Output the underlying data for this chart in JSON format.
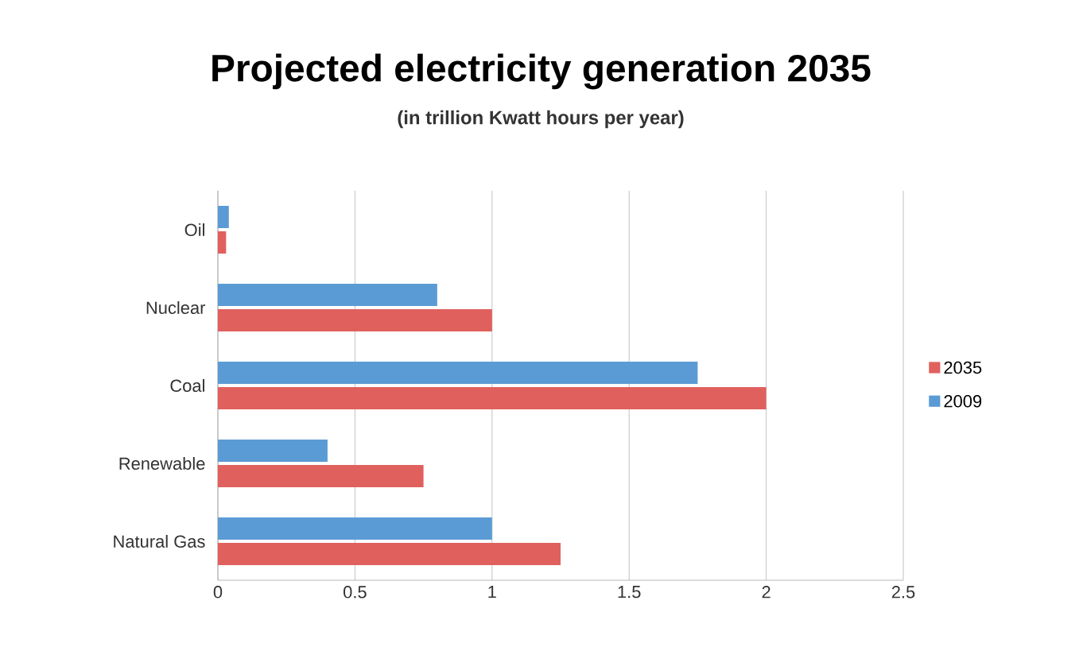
{
  "chart_data": {
    "type": "bar",
    "orientation": "horizontal",
    "title": "Projected electricity generation 2035",
    "subtitle": "(in trillion Kwatt hours per year)",
    "categories": [
      "Oil",
      "Nuclear",
      "Coal",
      "Renewable",
      "Natural Gas"
    ],
    "series": [
      {
        "name": "2035",
        "color": "#e0605d",
        "values": [
          0.03,
          1.0,
          2.0,
          0.75,
          1.25
        ]
      },
      {
        "name": "2009",
        "color": "#5b9bd5",
        "values": [
          0.04,
          0.8,
          1.75,
          0.4,
          1.0
        ]
      }
    ],
    "xlim": [
      0,
      2.5
    ],
    "xticks": [
      0,
      0.5,
      1,
      1.5,
      2,
      2.5
    ],
    "grid": "x",
    "legend": "right"
  }
}
